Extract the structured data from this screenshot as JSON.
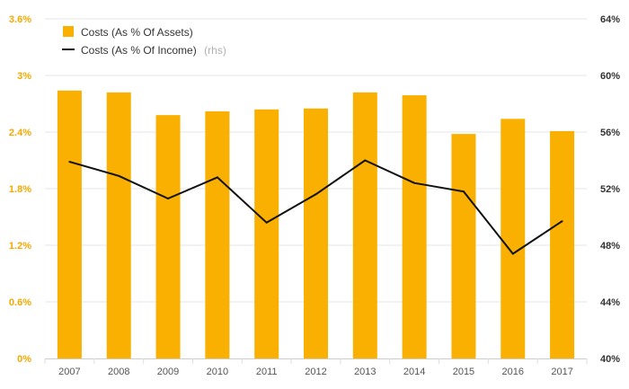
{
  "chart_data": {
    "type": "bar+line",
    "categories": [
      "2007",
      "2008",
      "2009",
      "2010",
      "2011",
      "2012",
      "2013",
      "2014",
      "2015",
      "2016",
      "2017"
    ],
    "series": [
      {
        "name": "Costs (As % Of Assets)",
        "type": "bar",
        "axis": "left",
        "color": "#f9b000",
        "values": [
          2.84,
          2.82,
          2.58,
          2.62,
          2.64,
          2.65,
          2.82,
          2.79,
          2.38,
          2.54,
          2.41
        ]
      },
      {
        "name": "Costs (As % Of Income)",
        "name_suffix": "(rhs)",
        "type": "line",
        "axis": "right",
        "color": "#111111",
        "values": [
          53.9,
          52.9,
          51.3,
          52.8,
          49.6,
          51.6,
          54.0,
          52.4,
          51.8,
          47.4,
          49.7
        ]
      }
    ],
    "y_left": {
      "min": 0,
      "max": 3.6,
      "ticks": [
        "0%",
        "0.6%",
        "1.2%",
        "1.8%",
        "2.4%",
        "3%",
        "3.6%"
      ],
      "color": "#f5a800"
    },
    "y_right": {
      "min": 40,
      "max": 64,
      "ticks": [
        "40%",
        "44%",
        "48%",
        "52%",
        "56%",
        "60%",
        "64%"
      ]
    },
    "grid": true,
    "legend_position": "top-left"
  }
}
